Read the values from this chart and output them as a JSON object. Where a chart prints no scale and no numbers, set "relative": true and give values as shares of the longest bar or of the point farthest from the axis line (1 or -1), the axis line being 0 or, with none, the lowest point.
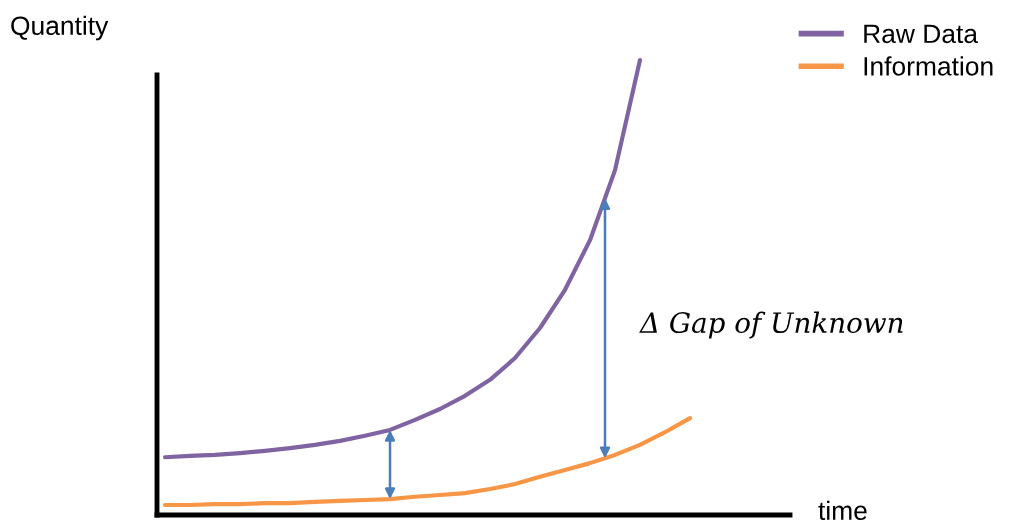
{
  "chart_data": {
    "type": "line",
    "relative": true,
    "ylabel": "Quantity",
    "xlabel": "time",
    "categories": [
      null,
      null,
      null,
      null,
      null,
      null,
      null,
      null,
      null,
      null,
      null,
      null,
      null,
      null,
      null,
      null,
      null,
      null,
      null,
      null,
      null,
      null
    ],
    "series": [
      {
        "name": "Raw Data",
        "color": "#8064a2",
        "values": [
          0.127,
          0.13,
          0.132,
          0.136,
          0.141,
          0.147,
          0.154,
          0.163,
          0.174,
          0.187,
          0.209,
          0.233,
          0.262,
          0.297,
          0.345,
          0.411,
          0.495,
          0.604,
          0.758,
          1,
          null,
          null
        ]
      },
      {
        "name": "Information",
        "color": "#f79646",
        "values": [
          0.022,
          0.022,
          0.024,
          0.024,
          0.026,
          0.026,
          0.029,
          0.031,
          0.033,
          0.035,
          0.04,
          0.044,
          0.048,
          0.057,
          0.068,
          0.084,
          0.099,
          0.114,
          0.132,
          0.154,
          0.182,
          0.213
        ]
      }
    ],
    "annotations": [
      "Δ Gap of Unknown"
    ],
    "legend": "top right",
    "marker": "none",
    "line_style": "solid"
  }
}
